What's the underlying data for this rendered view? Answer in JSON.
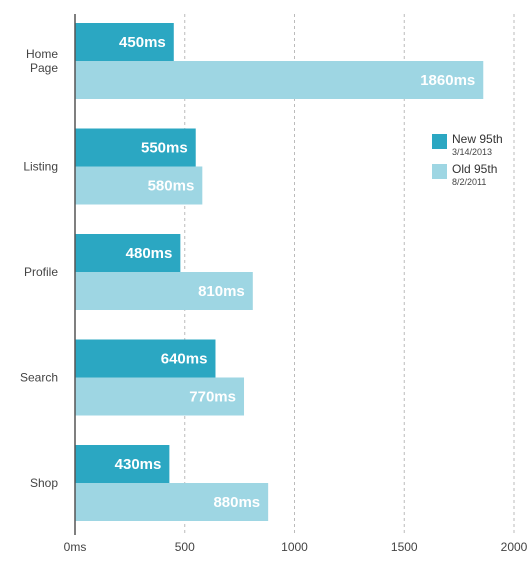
{
  "chart_data": {
    "type": "bar",
    "orientation": "horizontal",
    "categories": [
      "Home\nPage",
      "Listing",
      "Profile",
      "Search",
      "Shop"
    ],
    "series": [
      {
        "name": "New 95th",
        "subtitle": "3/14/2013",
        "color": "#2ba7c2",
        "values": [
          450,
          550,
          480,
          640,
          430
        ],
        "labels": [
          "450ms",
          "550ms",
          "480ms",
          "640ms",
          "430ms"
        ]
      },
      {
        "name": "Old 95th",
        "subtitle": "8/2/2011",
        "color": "#9ed6e3",
        "values": [
          1860,
          580,
          810,
          770,
          880
        ],
        "labels": [
          "1860ms",
          "580ms",
          "810ms",
          "770ms",
          "880ms"
        ]
      }
    ],
    "xlim": [
      0,
      2000
    ],
    "xticks": [
      0,
      500,
      1000,
      1500,
      2000
    ],
    "xtick_labels": [
      "0ms",
      "500",
      "1000",
      "1500",
      "2000"
    ],
    "grid": "vertical dashed",
    "legend_position": "right"
  },
  "legend": {
    "new_name": "New 95th",
    "new_date": "3/14/2013",
    "old_name": "Old 95th",
    "old_date": "8/2/2011"
  },
  "colors": {
    "axis": "#555555",
    "grid": "#bbbbbb"
  }
}
